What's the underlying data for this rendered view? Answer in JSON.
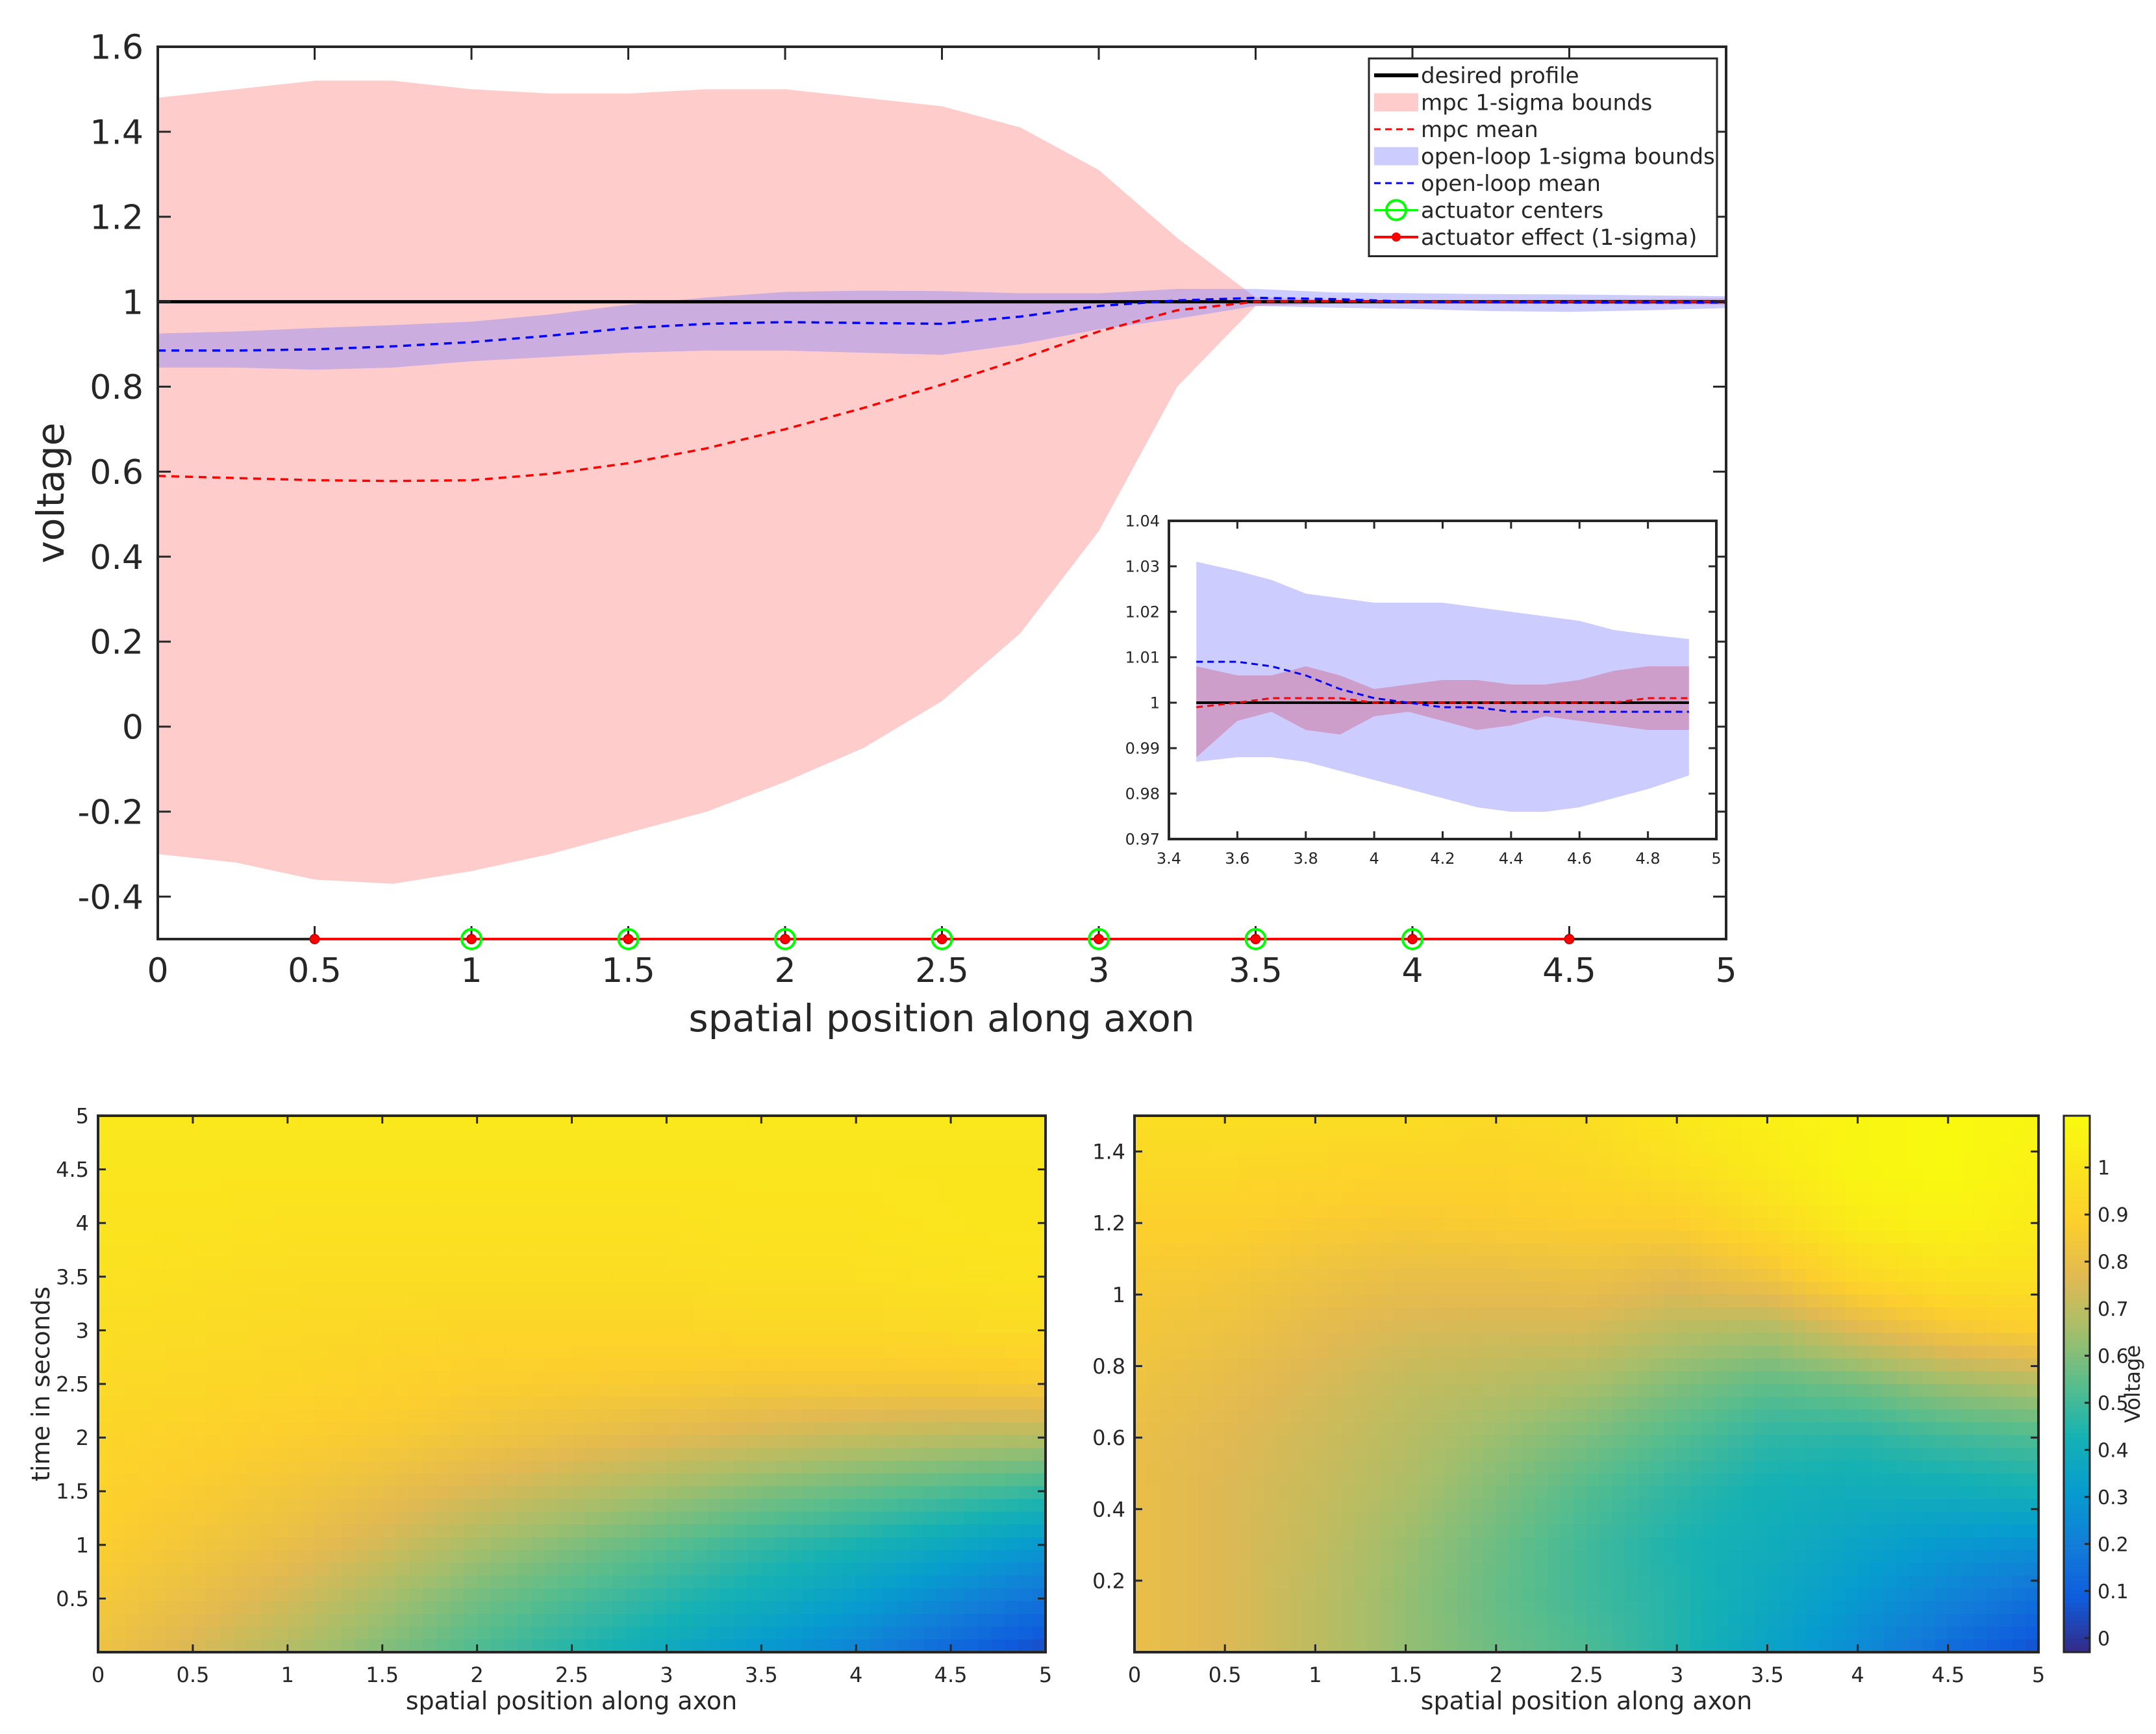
{
  "chart_data": [
    {
      "id": "main",
      "type": "line",
      "xlabel": "spatial position along axon",
      "ylabel": "voltage",
      "xlim": [
        0,
        5
      ],
      "ylim": [
        -0.5,
        1.6
      ],
      "xticks": [
        "0",
        "0.5",
        "1",
        "1.5",
        "2",
        "2.5",
        "3",
        "3.5",
        "4",
        "4.5",
        "5"
      ],
      "yticks": [
        "-0.4",
        "-0.2",
        "0",
        "0.2",
        "0.4",
        "0.6",
        "0.8",
        "1",
        "1.2",
        "1.4",
        "1.6"
      ],
      "legend": {
        "position": "top-right",
        "entries": [
          {
            "label": "desired profile",
            "style": "line",
            "color": "#000000"
          },
          {
            "label": "mpc 1-sigma bounds",
            "style": "patch",
            "color": "#ffcccc"
          },
          {
            "label": "mpc mean",
            "style": "dashed",
            "color": "#ff0000"
          },
          {
            "label": "open-loop 1-sigma bounds",
            "style": "patch",
            "color": "#ccccff"
          },
          {
            "label": "open-loop mean",
            "style": "dashed",
            "color": "#0000ff"
          },
          {
            "label": "actuator centers",
            "style": "circle",
            "color": "#00ff00"
          },
          {
            "label": "actuator effect (1-sigma)",
            "style": "line-dot",
            "color": "#ff0000"
          }
        ]
      },
      "x": [
        0,
        0.25,
        0.5,
        0.75,
        1,
        1.25,
        1.5,
        1.75,
        2,
        2.25,
        2.5,
        2.75,
        3,
        3.25,
        3.5,
        3.75,
        4,
        4.25,
        4.5,
        4.75,
        5
      ],
      "series": [
        {
          "name": "desired profile",
          "values": [
            1,
            1,
            1,
            1,
            1,
            1,
            1,
            1,
            1,
            1,
            1,
            1,
            1,
            1,
            1,
            1,
            1,
            1,
            1,
            1,
            1
          ]
        },
        {
          "name": "mpc upper",
          "values": [
            1.48,
            1.5,
            1.52,
            1.52,
            1.5,
            1.49,
            1.49,
            1.5,
            1.5,
            1.48,
            1.46,
            1.41,
            1.31,
            1.15,
            1.01,
            1.005,
            1.003,
            1.003,
            1.005,
            1.006,
            1.008
          ]
        },
        {
          "name": "mpc lower",
          "values": [
            -0.3,
            -0.32,
            -0.36,
            -0.37,
            -0.34,
            -0.3,
            -0.25,
            -0.2,
            -0.13,
            -0.05,
            0.06,
            0.22,
            0.46,
            0.8,
            0.99,
            0.995,
            0.996,
            0.995,
            0.995,
            0.994,
            0.993
          ]
        },
        {
          "name": "mpc mean",
          "values": [
            0.59,
            0.585,
            0.58,
            0.578,
            0.58,
            0.595,
            0.62,
            0.655,
            0.7,
            0.75,
            0.805,
            0.865,
            0.93,
            0.98,
            1,
            1.001,
            1,
            1,
            1,
            1,
            1
          ]
        },
        {
          "name": "open-loop upper",
          "values": [
            0.925,
            0.93,
            0.938,
            0.945,
            0.953,
            0.97,
            0.993,
            1.01,
            1.023,
            1.026,
            1.025,
            1.02,
            1.02,
            1.03,
            1.03,
            1.022,
            1.02,
            1.018,
            1.017,
            1.015,
            1.013
          ]
        },
        {
          "name": "open-loop lower",
          "values": [
            0.845,
            0.845,
            0.84,
            0.845,
            0.86,
            0.87,
            0.88,
            0.885,
            0.885,
            0.88,
            0.875,
            0.9,
            0.935,
            0.96,
            0.99,
            0.986,
            0.983,
            0.978,
            0.976,
            0.98,
            0.985
          ]
        },
        {
          "name": "open-loop mean",
          "values": [
            0.885,
            0.885,
            0.888,
            0.895,
            0.905,
            0.92,
            0.938,
            0.948,
            0.952,
            0.95,
            0.948,
            0.965,
            0.99,
            1.003,
            1.009,
            1.006,
            1,
            0.999,
            0.998,
            0.998,
            0.998
          ]
        }
      ],
      "actuator_centers": [
        1,
        1.5,
        2,
        2.5,
        3,
        3.5,
        4
      ],
      "actuator_effect": {
        "y": -0.5,
        "x_start": 0.5,
        "x_end": 4.5,
        "dots": [
          0.5,
          1,
          1.5,
          2,
          2.5,
          3,
          3.5,
          4,
          4.5
        ]
      }
    },
    {
      "id": "inset",
      "type": "line",
      "xlim": [
        3.4,
        5
      ],
      "ylim": [
        0.97,
        1.04
      ],
      "xticks": [
        "3.4",
        "3.6",
        "3.8",
        "4",
        "4.2",
        "4.4",
        "4.6",
        "4.8",
        "5"
      ],
      "yticks": [
        "0.97",
        "0.98",
        "0.99",
        "1",
        "1.01",
        "1.02",
        "1.03",
        "1.04"
      ],
      "x": [
        3.48,
        3.6,
        3.7,
        3.8,
        3.9,
        4.0,
        4.1,
        4.2,
        4.3,
        4.4,
        4.5,
        4.6,
        4.7,
        4.8,
        4.92
      ],
      "series": [
        {
          "name": "desired profile",
          "values": [
            1,
            1,
            1,
            1,
            1,
            1,
            1,
            1,
            1,
            1,
            1,
            1,
            1,
            1,
            1
          ]
        },
        {
          "name": "open-loop upper",
          "values": [
            1.031,
            1.029,
            1.027,
            1.024,
            1.023,
            1.022,
            1.022,
            1.022,
            1.021,
            1.02,
            1.019,
            1.018,
            1.016,
            1.015,
            1.014
          ]
        },
        {
          "name": "open-loop lower",
          "values": [
            0.987,
            0.988,
            0.988,
            0.987,
            0.985,
            0.983,
            0.981,
            0.979,
            0.977,
            0.976,
            0.976,
            0.977,
            0.979,
            0.981,
            0.984
          ]
        },
        {
          "name": "mpc upper",
          "values": [
            1.008,
            1.006,
            1.006,
            1.008,
            1.006,
            1.003,
            1.004,
            1.005,
            1.005,
            1.004,
            1.004,
            1.005,
            1.007,
            1.008,
            1.008
          ]
        },
        {
          "name": "mpc lower",
          "values": [
            0.988,
            0.996,
            0.998,
            0.994,
            0.993,
            0.997,
            0.998,
            0.996,
            0.994,
            0.995,
            0.997,
            0.996,
            0.995,
            0.994,
            0.994
          ]
        },
        {
          "name": "mpc mean",
          "values": [
            0.999,
            1,
            1.001,
            1.001,
            1.001,
            1,
            1,
            1,
            1,
            1,
            1,
            1,
            1,
            1.001,
            1.001
          ]
        },
        {
          "name": "open-loop mean",
          "values": [
            1.009,
            1.009,
            1.008,
            1.006,
            1.003,
            1.001,
            1,
            0.999,
            0.999,
            0.998,
            0.998,
            0.998,
            0.998,
            0.998,
            0.998
          ]
        }
      ]
    },
    {
      "id": "heatmap-left",
      "type": "heatmap",
      "xlabel": "spatial position along axon",
      "ylabel": "time in seconds",
      "xlim": [
        0,
        5
      ],
      "ylim": [
        0,
        5
      ],
      "xticks": [
        "0",
        "0.5",
        "1",
        "1.5",
        "2",
        "2.5",
        "3",
        "3.5",
        "4",
        "4.5",
        "5"
      ],
      "yticks": [
        "0.5",
        "1",
        "1.5",
        "2",
        "2.5",
        "3",
        "3.5",
        "4",
        "4.5",
        "5"
      ],
      "x": [
        0,
        0.5,
        1,
        1.5,
        2,
        2.5,
        3,
        3.5,
        4,
        4.5,
        5
      ],
      "y": [
        0,
        0.5,
        1,
        1.5,
        2,
        2.5,
        3,
        3.5,
        4,
        4.5,
        5
      ],
      "z": [
        [
          0.82,
          0.75,
          0.68,
          0.6,
          0.52,
          0.45,
          0.38,
          0.3,
          0.22,
          0.12,
          0.04
        ],
        [
          0.85,
          0.8,
          0.74,
          0.66,
          0.58,
          0.52,
          0.46,
          0.4,
          0.33,
          0.24,
          0.16
        ],
        [
          0.88,
          0.84,
          0.8,
          0.74,
          0.66,
          0.6,
          0.54,
          0.48,
          0.43,
          0.37,
          0.3
        ],
        [
          0.9,
          0.87,
          0.84,
          0.8,
          0.75,
          0.7,
          0.65,
          0.6,
          0.56,
          0.52,
          0.48
        ],
        [
          0.92,
          0.9,
          0.88,
          0.86,
          0.83,
          0.8,
          0.77,
          0.74,
          0.71,
          0.69,
          0.68
        ],
        [
          0.94,
          0.93,
          0.92,
          0.9,
          0.88,
          0.87,
          0.86,
          0.85,
          0.85,
          0.85,
          0.86
        ],
        [
          0.96,
          0.95,
          0.94,
          0.93,
          0.92,
          0.92,
          0.92,
          0.93,
          0.93,
          0.94,
          0.95
        ],
        [
          0.98,
          0.97,
          0.96,
          0.96,
          0.96,
          0.96,
          0.96,
          0.97,
          0.97,
          0.98,
          0.99
        ],
        [
          0.99,
          0.99,
          0.98,
          0.98,
          0.98,
          0.98,
          0.98,
          0.99,
          0.99,
          1.0,
          1.0
        ],
        [
          1.0,
          1.0,
          1.0,
          1.0,
          1.0,
          1.0,
          1.0,
          1.0,
          1.0,
          1.0,
          1.0
        ],
        [
          1.01,
          1.01,
          1.01,
          1.01,
          1.01,
          1.01,
          1.01,
          1.01,
          1.01,
          1.01,
          1.01
        ]
      ]
    },
    {
      "id": "heatmap-right",
      "type": "heatmap",
      "xlabel": "spatial position along axon",
      "ylabel": "",
      "xlim": [
        0,
        5
      ],
      "ylim": [
        0,
        1.5
      ],
      "xticks": [
        "0",
        "0.5",
        "1",
        "1.5",
        "2",
        "2.5",
        "3",
        "3.5",
        "4",
        "4.5",
        "5"
      ],
      "yticks": [
        "0.2",
        "0.4",
        "0.6",
        "0.8",
        "1",
        "1.2",
        "1.4"
      ],
      "x": [
        0,
        0.5,
        1,
        1.5,
        2,
        2.5,
        3,
        3.5,
        4,
        4.5,
        5
      ],
      "y": [
        0,
        0.15,
        0.3,
        0.45,
        0.6,
        0.75,
        0.9,
        1.05,
        1.2,
        1.35,
        1.5
      ],
      "z": [
        [
          0.8,
          0.76,
          0.7,
          0.63,
          0.57,
          0.52,
          0.45,
          0.35,
          0.25,
          0.14,
          0.05
        ],
        [
          0.8,
          0.76,
          0.7,
          0.63,
          0.56,
          0.5,
          0.45,
          0.38,
          0.3,
          0.22,
          0.15
        ],
        [
          0.8,
          0.76,
          0.71,
          0.64,
          0.57,
          0.5,
          0.44,
          0.4,
          0.35,
          0.3,
          0.27
        ],
        [
          0.8,
          0.76,
          0.72,
          0.67,
          0.6,
          0.53,
          0.47,
          0.42,
          0.4,
          0.4,
          0.42
        ],
        [
          0.8,
          0.77,
          0.73,
          0.69,
          0.64,
          0.59,
          0.53,
          0.47,
          0.46,
          0.5,
          0.52
        ],
        [
          0.82,
          0.79,
          0.75,
          0.71,
          0.69,
          0.66,
          0.6,
          0.55,
          0.58,
          0.64,
          0.68
        ],
        [
          0.84,
          0.82,
          0.78,
          0.75,
          0.74,
          0.74,
          0.69,
          0.67,
          0.76,
          0.84,
          0.88
        ],
        [
          0.86,
          0.85,
          0.82,
          0.8,
          0.8,
          0.81,
          0.78,
          0.83,
          0.93,
          0.98,
          0.98
        ],
        [
          0.89,
          0.89,
          0.87,
          0.86,
          0.87,
          0.88,
          0.88,
          0.95,
          1.03,
          1.06,
          1.03
        ],
        [
          0.93,
          0.93,
          0.92,
          0.91,
          0.91,
          0.93,
          0.97,
          1.02,
          1.08,
          1.1,
          1.06
        ],
        [
          0.96,
          0.97,
          0.96,
          0.96,
          0.94,
          0.96,
          1.01,
          1.05,
          1.08,
          1.1,
          1.08
        ]
      ],
      "colorbar": {
        "label": "Voltage",
        "range": [
          -0.03,
          1.11
        ],
        "ticks": [
          "0",
          "0.1",
          "0.2",
          "0.3",
          "0.4",
          "0.5",
          "0.6",
          "0.7",
          "0.8",
          "0.9",
          "1"
        ]
      }
    }
  ]
}
